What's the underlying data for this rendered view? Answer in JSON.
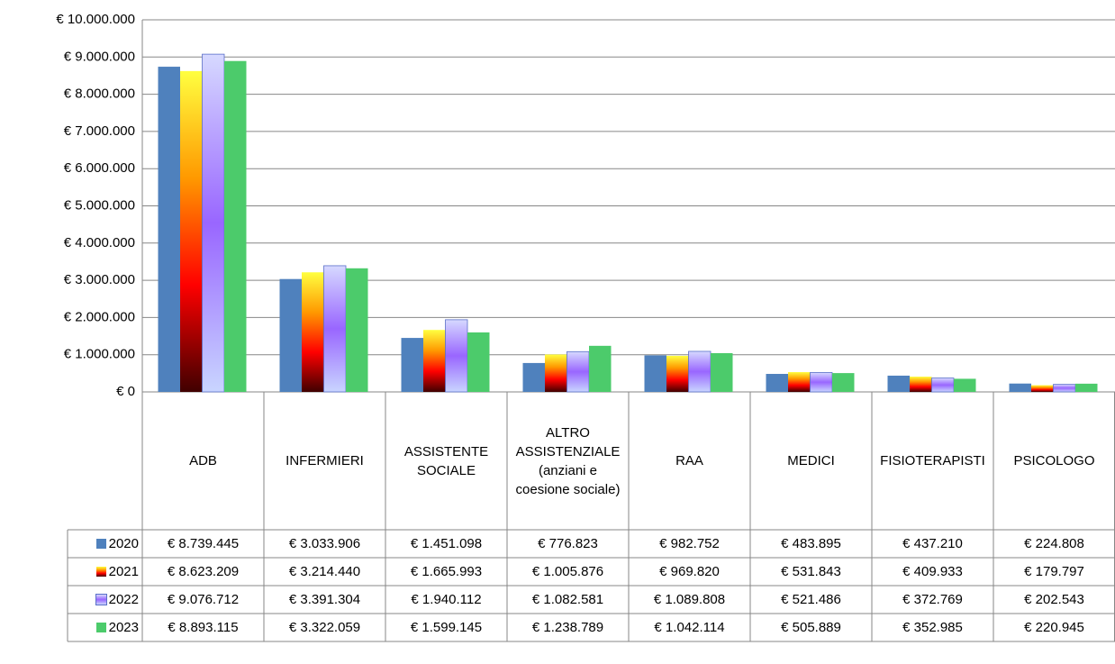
{
  "chart_data": {
    "type": "bar",
    "categories": [
      "ADB",
      "INFERMIERI",
      "ASSISTENTE SOCIALE",
      "ALTRO ASSISTENZIALE (anziani e coesione sociale)",
      "RAA",
      "MEDICI",
      "FISIOTERAPISTI",
      "PSICOLOGO"
    ],
    "series": [
      {
        "name": "2020",
        "color": "#4f81bd",
        "values": [
          8739445,
          3033906,
          1451098,
          776823,
          982752,
          483895,
          437210,
          224808
        ],
        "value_labels": [
          "€ 8.739.445",
          "€ 3.033.906",
          "€ 1.451.098",
          "€ 776.823",
          "€ 982.752",
          "€ 483.895",
          "€ 437.210",
          "€ 224.808"
        ]
      },
      {
        "name": "2021",
        "color": [
          "#ffff40",
          "#ff9900",
          "#ff0000",
          "#400000"
        ],
        "values": [
          8623209,
          3214440,
          1665993,
          1005876,
          969820,
          531843,
          409933,
          179797
        ],
        "value_labels": [
          "€ 8.623.209",
          "€ 3.214.440",
          "€ 1.665.993",
          "€ 1.005.876",
          "€ 969.820",
          "€ 531.843",
          "€ 409.933",
          "€ 179.797"
        ]
      },
      {
        "name": "2022",
        "color": [
          "#d6d9ff",
          "#9966ff",
          "#c9d5ff"
        ],
        "values": [
          9076712,
          3391304,
          1940112,
          1082581,
          1089808,
          521486,
          372769,
          202543
        ],
        "value_labels": [
          "€ 9.076.712",
          "€ 3.391.304",
          "€ 1.940.112",
          "€ 1.082.581",
          "€ 1.089.808",
          "€ 521.486",
          "€ 372.769",
          "€ 202.543"
        ]
      },
      {
        "name": "2023",
        "color": "#4ccb6b",
        "values": [
          8893115,
          3322059,
          1599145,
          1238789,
          1042114,
          505889,
          352985,
          220945
        ],
        "value_labels": [
          "€ 8.893.115",
          "€ 3.322.059",
          "€ 1.599.145",
          "€ 1.238.789",
          "€ 1.042.114",
          "€ 505.889",
          "€ 352.985",
          "€ 220.945"
        ]
      }
    ],
    "ylim": [
      0,
      10000000
    ],
    "yticks": [
      {
        "value": 0,
        "label": "€ 0"
      },
      {
        "value": 1000000,
        "label": "€ 1.000.000"
      },
      {
        "value": 2000000,
        "label": "€ 2.000.000"
      },
      {
        "value": 3000000,
        "label": "€ 3.000.000"
      },
      {
        "value": 4000000,
        "label": "€ 4.000.000"
      },
      {
        "value": 5000000,
        "label": "€ 5.000.000"
      },
      {
        "value": 6000000,
        "label": "€ 6.000.000"
      },
      {
        "value": 7000000,
        "label": "€ 7.000.000"
      },
      {
        "value": 8000000,
        "label": "€ 8.000.000"
      },
      {
        "value": 9000000,
        "label": "€ 9.000.000"
      },
      {
        "value": 10000000,
        "label": "€ 10.000.000"
      }
    ],
    "grid": true
  }
}
